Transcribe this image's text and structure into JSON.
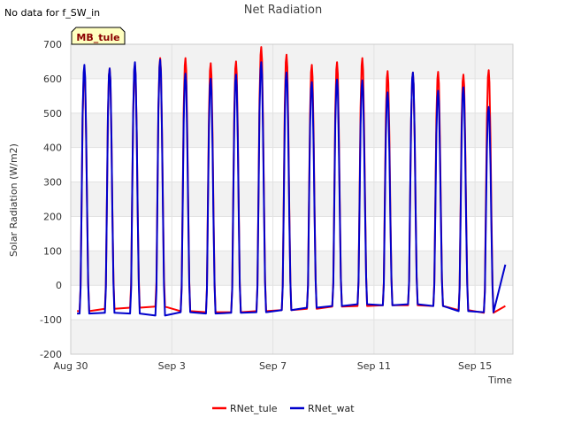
{
  "chart_data": {
    "type": "line",
    "title": "Net Radiation",
    "note": "No data for f_SW_in",
    "site_label": "MB_tule",
    "xlabel": "Time",
    "ylabel": "Solar Radiation (W/m2)",
    "xlim": [
      0,
      17.5
    ],
    "ylim": [
      -200,
      700
    ],
    "yticks": [
      -200,
      -100,
      0,
      100,
      200,
      300,
      400,
      500,
      600,
      700
    ],
    "xticks": [
      {
        "value": 0,
        "label": "Aug 30"
      },
      {
        "value": 4,
        "label": "Sep 3"
      },
      {
        "value": 8,
        "label": "Sep 7"
      },
      {
        "value": 12,
        "label": "Sep 11"
      },
      {
        "value": 16,
        "label": "Sep 15"
      }
    ],
    "grid": true,
    "colors": {
      "tule": "#ff0000",
      "wat": "#0000cc",
      "band": "#f2f2f2",
      "badge_bg": "#ffffc0"
    },
    "series": [
      {
        "name": "RNet_tule",
        "color": "#ff0000",
        "days": [
          {
            "start": 0.35,
            "peak": 625,
            "night": -75
          },
          {
            "start": 1.35,
            "peak": 630,
            "night": -68
          },
          {
            "start": 2.35,
            "peak": 640,
            "night": -65
          },
          {
            "start": 3.35,
            "peak": 660,
            "night": -62
          },
          {
            "start": 4.35,
            "peak": 660,
            "night": -75
          },
          {
            "start": 5.35,
            "peak": 645,
            "night": -78
          },
          {
            "start": 6.35,
            "peak": 650,
            "night": -78
          },
          {
            "start": 7.35,
            "peak": 692,
            "night": -75
          },
          {
            "start": 8.35,
            "peak": 670,
            "night": -72
          },
          {
            "start": 9.35,
            "peak": 640,
            "night": -68
          },
          {
            "start": 10.35,
            "peak": 648,
            "night": -62
          },
          {
            "start": 11.35,
            "peak": 660,
            "night": -60
          },
          {
            "start": 12.35,
            "peak": 622,
            "night": -58
          },
          {
            "start": 13.35,
            "peak": 618,
            "night": -58
          },
          {
            "start": 14.35,
            "peak": 620,
            "night": -60
          },
          {
            "start": 15.35,
            "peak": 612,
            "night": -72
          },
          {
            "start": 16.35,
            "peak": 625,
            "night": -80
          }
        ],
        "end_x": 17.2,
        "end_y": -60
      },
      {
        "name": "RNet_wat",
        "color": "#0000cc",
        "days": [
          {
            "start": 0.35,
            "peak": 640,
            "night": -82
          },
          {
            "start": 1.35,
            "peak": 630,
            "night": -80
          },
          {
            "start": 2.35,
            "peak": 648,
            "night": -82
          },
          {
            "start": 3.35,
            "peak": 655,
            "night": -88
          },
          {
            "start": 4.35,
            "peak": 615,
            "night": -78
          },
          {
            "start": 5.35,
            "peak": 600,
            "night": -82
          },
          {
            "start": 6.35,
            "peak": 612,
            "night": -80
          },
          {
            "start": 7.35,
            "peak": 648,
            "night": -78
          },
          {
            "start": 8.35,
            "peak": 618,
            "night": -72
          },
          {
            "start": 9.35,
            "peak": 590,
            "night": -65
          },
          {
            "start": 10.35,
            "peak": 598,
            "night": -60
          },
          {
            "start": 11.35,
            "peak": 595,
            "night": -55
          },
          {
            "start": 12.35,
            "peak": 560,
            "night": -58
          },
          {
            "start": 13.35,
            "peak": 618,
            "night": -55
          },
          {
            "start": 14.35,
            "peak": 565,
            "night": -60
          },
          {
            "start": 15.35,
            "peak": 575,
            "night": -75
          },
          {
            "start": 16.35,
            "peak": 518,
            "night": -78
          }
        ],
        "end_x": 17.2,
        "end_y": 60
      }
    ],
    "legend": {
      "placement": "bottom-center",
      "items": [
        "RNet_tule",
        "RNet_wat"
      ]
    }
  }
}
